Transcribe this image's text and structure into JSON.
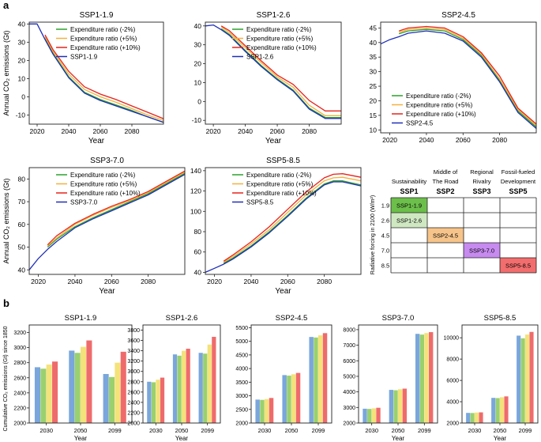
{
  "panels": {
    "a": "a",
    "b": "b"
  },
  "colors": {
    "green": "#2ca02c",
    "orange": "#f5b13d",
    "red": "#e8221b",
    "blue": "#1f2fb8",
    "bar_blue": "#7aa6dc",
    "bar_green": "#9ad06e",
    "bar_yellow": "#f4e27a",
    "bar_red": "#ef6b6b"
  },
  "legend_scenarios": [
    "Expenditure ratio (-2%)",
    "Expenditure ratio (+5%)",
    "Expenditure ratio (+10%)"
  ],
  "xlabel": "Year",
  "ylabel_a": "Annual CO₂ emissions (Gt)",
  "ylabel_b": "Cumulative CO₂ emissions (Gt) since 1850",
  "chart_data": [
    {
      "type": "line",
      "title": "SSP1-1.9",
      "xlabel": "Year",
      "ylabel": "Annual CO₂ emissions (Gt)",
      "xlim": [
        2015,
        2100
      ],
      "ylim": [
        -15,
        41
      ],
      "xticks": [
        2020,
        2040,
        2060,
        2080
      ],
      "yticks": [
        -10,
        0,
        10,
        20,
        30,
        40
      ],
      "series": [
        {
          "name": "Expenditure ratio (-2%)",
          "x": [
            2025,
            2030,
            2040,
            2050,
            2060,
            2070,
            2080,
            2090,
            2100
          ],
          "y": [
            32,
            24,
            11,
            2.5,
            -1.5,
            -4.5,
            -7.5,
            -11,
            -14
          ]
        },
        {
          "name": "Expenditure ratio (+5%)",
          "x": [
            2025,
            2030,
            2040,
            2050,
            2060,
            2070,
            2080,
            2090,
            2100
          ],
          "y": [
            33,
            25,
            12.5,
            4,
            0,
            -3,
            -6.5,
            -10,
            -13
          ]
        },
        {
          "name": "Expenditure ratio (+10%)",
          "x": [
            2025,
            2030,
            2040,
            2050,
            2060,
            2070,
            2080,
            2090,
            2100
          ],
          "y": [
            34,
            26,
            14,
            5.5,
            1.5,
            -1.5,
            -5,
            -8.5,
            -12
          ]
        },
        {
          "name": "SSP1-1.9",
          "x": [
            2015,
            2020,
            2025,
            2030,
            2040,
            2050,
            2060,
            2070,
            2080,
            2090,
            2100
          ],
          "y": [
            40,
            40,
            31.5,
            23.5,
            10.5,
            2,
            -2,
            -5,
            -8,
            -11,
            -14
          ]
        }
      ]
    },
    {
      "type": "line",
      "title": "SSP1-2.6",
      "xlabel": "Year",
      "ylabel": "",
      "xlim": [
        2015,
        2100
      ],
      "ylim": [
        -12,
        42
      ],
      "xticks": [
        2020,
        2040,
        2060,
        2080
      ],
      "yticks": [
        -10,
        0,
        10,
        20,
        30,
        40
      ],
      "series": [
        {
          "name": "Expenditure ratio (-2%)",
          "x": [
            2025,
            2030,
            2040,
            2050,
            2060,
            2070,
            2080,
            2090,
            2100
          ],
          "y": [
            38.5,
            35.5,
            27,
            19,
            12,
            6,
            -3.5,
            -8.5,
            -8.5
          ]
        },
        {
          "name": "Expenditure ratio (+5%)",
          "x": [
            2025,
            2030,
            2040,
            2050,
            2060,
            2070,
            2080,
            2090,
            2100
          ],
          "y": [
            39.5,
            36.5,
            28.5,
            20.5,
            13,
            7.5,
            -2,
            -7.5,
            -7.5
          ]
        },
        {
          "name": "Expenditure ratio (+10%)",
          "x": [
            2025,
            2030,
            2040,
            2050,
            2060,
            2070,
            2080,
            2090,
            2100
          ],
          "y": [
            40,
            37.5,
            29.5,
            21.5,
            14,
            9,
            0.5,
            -5,
            -5
          ]
        },
        {
          "name": "SSP1-2.6",
          "x": [
            2015,
            2020,
            2025,
            2030,
            2040,
            2050,
            2060,
            2070,
            2080,
            2090,
            2100
          ],
          "y": [
            40,
            40.5,
            38,
            35,
            26.5,
            18.5,
            11.5,
            5.5,
            -4,
            -9,
            -9
          ]
        }
      ]
    },
    {
      "type": "line",
      "title": "SSP2-4.5",
      "xlabel": "",
      "ylabel": "",
      "xlim": [
        2015,
        2100
      ],
      "ylim": [
        9,
        47
      ],
      "xticks": [
        2020,
        2040,
        2060,
        2080
      ],
      "yticks": [
        10,
        15,
        20,
        25,
        30,
        35,
        40,
        45
      ],
      "series": [
        {
          "name": "Expenditure ratio (-2%)",
          "x": [
            2025,
            2030,
            2040,
            2050,
            2060,
            2070,
            2080,
            2090,
            2100
          ],
          "y": [
            43,
            44,
            44.5,
            44,
            41,
            35.5,
            27,
            16.5,
            11
          ]
        },
        {
          "name": "Expenditure ratio (+5%)",
          "x": [
            2025,
            2030,
            2040,
            2050,
            2060,
            2070,
            2080,
            2090,
            2100
          ],
          "y": [
            43.5,
            44.5,
            45,
            44.5,
            41.5,
            36,
            27.5,
            17,
            11.5
          ]
        },
        {
          "name": "Expenditure ratio (+10%)",
          "x": [
            2025,
            2030,
            2040,
            2050,
            2060,
            2070,
            2080,
            2090,
            2100
          ],
          "y": [
            44,
            45,
            45.5,
            45,
            42,
            36.5,
            28.5,
            17.5,
            12
          ]
        },
        {
          "name": "SSP2-4.5",
          "x": [
            2015,
            2020,
            2025,
            2030,
            2040,
            2050,
            2060,
            2070,
            2080,
            2090,
            2100
          ],
          "y": [
            39.5,
            41,
            42,
            43.2,
            44,
            43.2,
            40.5,
            35,
            26.5,
            16,
            10.5
          ]
        }
      ]
    },
    {
      "type": "line",
      "title": "SSP3-7.0",
      "xlabel": "Year",
      "ylabel": "Annual CO₂ emissions (Gt)",
      "xlim": [
        2015,
        2100
      ],
      "ylim": [
        38,
        85
      ],
      "xticks": [
        2020,
        2040,
        2060,
        2080
      ],
      "yticks": [
        40,
        50,
        60,
        70,
        80
      ],
      "series": [
        {
          "name": "Expenditure ratio (-2%)",
          "x": [
            2025,
            2030,
            2040,
            2050,
            2060,
            2070,
            2080,
            2090,
            2100
          ],
          "y": [
            50,
            53.5,
            59,
            63,
            66.5,
            70,
            73.5,
            78,
            82.5
          ]
        },
        {
          "name": "Expenditure ratio (+5%)",
          "x": [
            2025,
            2030,
            2040,
            2050,
            2060,
            2070,
            2080,
            2090,
            2100
          ],
          "y": [
            50.5,
            54,
            60,
            64,
            67.5,
            70.5,
            74,
            78.5,
            83
          ]
        },
        {
          "name": "Expenditure ratio (+10%)",
          "x": [
            2025,
            2030,
            2040,
            2050,
            2060,
            2070,
            2080,
            2090,
            2100
          ],
          "y": [
            51,
            55,
            60.5,
            64.5,
            68,
            71,
            74.5,
            79,
            83.5
          ]
        },
        {
          "name": "SSP3-7.0",
          "x": [
            2015,
            2020,
            2025,
            2030,
            2040,
            2050,
            2060,
            2070,
            2080,
            2090,
            2100
          ],
          "y": [
            40,
            45,
            49,
            52.5,
            58.5,
            62.5,
            66,
            69.5,
            73,
            77.5,
            82
          ]
        }
      ]
    },
    {
      "type": "line",
      "title": "SSP5-8.5",
      "xlabel": "Year",
      "ylabel": "",
      "xlim": [
        2015,
        2100
      ],
      "ylim": [
        38,
        143
      ],
      "xticks": [
        2020,
        2040,
        2060,
        2080
      ],
      "yticks": [
        40,
        60,
        80,
        100,
        120,
        140
      ],
      "series": [
        {
          "name": "Expenditure ratio (-2%)",
          "x": [
            2025,
            2030,
            2040,
            2050,
            2060,
            2070,
            2080,
            2085,
            2090,
            2100
          ],
          "y": [
            49,
            54,
            66,
            80,
            96,
            113,
            127,
            130,
            130,
            126
          ]
        },
        {
          "name": "Expenditure ratio (+5%)",
          "x": [
            2025,
            2030,
            2040,
            2050,
            2060,
            2070,
            2080,
            2085,
            2090,
            2100
          ],
          "y": [
            50,
            55.5,
            68,
            82,
            99,
            116,
            130,
            133,
            133.5,
            130
          ]
        },
        {
          "name": "Expenditure ratio (+10%)",
          "x": [
            2025,
            2030,
            2040,
            2050,
            2060,
            2070,
            2080,
            2085,
            2090,
            2100
          ],
          "y": [
            51,
            57,
            70,
            85,
            102,
            119,
            133,
            136.5,
            137,
            133.5
          ]
        },
        {
          "name": "SSP5-8.5",
          "x": [
            2015,
            2020,
            2025,
            2030,
            2040,
            2050,
            2060,
            2070,
            2080,
            2085,
            2090,
            2100
          ],
          "y": [
            40,
            44,
            48,
            53,
            65,
            79,
            95,
            112,
            126,
            129,
            129,
            125
          ]
        }
      ]
    },
    {
      "type": "table",
      "title": "SSP framework",
      "columns": [
        {
          "desc1": "",
          "desc2": "Sustainability",
          "code": "SSP1"
        },
        {
          "desc1": "Middle of",
          "desc2": "The Road",
          "code": "SSP2"
        },
        {
          "desc1": "Regional",
          "desc2": "Rivalry",
          "code": "SSP3"
        },
        {
          "desc1": "Fossil-fueled",
          "desc2": "Development",
          "code": "SSP5"
        }
      ],
      "rows": [
        "1.9",
        "2.6",
        "4.5",
        "7.0",
        "8.5"
      ],
      "ylabel": "Radiative forcing in 2100 (W/m²)",
      "cells": [
        {
          "row": 0,
          "col": 0,
          "label": "SSP1-1.9",
          "color": "#6cbf4a"
        },
        {
          "row": 1,
          "col": 0,
          "label": "SSP1-2.6",
          "color": "#cfe8c2"
        },
        {
          "row": 2,
          "col": 1,
          "label": "SSP2-4.5",
          "color": "#f6c48a"
        },
        {
          "row": 3,
          "col": 2,
          "label": "SSP3-7.0",
          "color": "#c78bf0"
        },
        {
          "row": 4,
          "col": 3,
          "label": "SSP5-8.5",
          "color": "#f26d6d"
        }
      ]
    },
    {
      "type": "bar",
      "title": "SSP1-1.9",
      "categories": [
        "2030",
        "2050",
        "2099"
      ],
      "xlabel": "Year",
      "ylabel": "Cumulative CO₂ emissions (Gt) since 1850",
      "ylim": [
        2000,
        3300
      ],
      "yticks": [
        2000,
        2200,
        2400,
        2600,
        2800,
        3000,
        3200
      ],
      "series": [
        {
          "name": "SSP",
          "values": [
            2740,
            2960,
            2650
          ]
        },
        {
          "name": "Expenditure ratio (-2%)",
          "values": [
            2720,
            2930,
            2610
          ]
        },
        {
          "name": "Expenditure ratio (+5%)",
          "values": [
            2775,
            3010,
            2800
          ]
        },
        {
          "name": "Expenditure ratio (+10%)",
          "values": [
            2815,
            3095,
            2945
          ]
        }
      ]
    },
    {
      "type": "bar",
      "title": "SSP1-2.6",
      "categories": [
        "2030",
        "2050",
        "2099"
      ],
      "xlabel": "Year",
      "ylabel": "",
      "ylim": [
        2000,
        3900
      ],
      "yticks": [
        2000,
        2200,
        2400,
        2600,
        2800,
        3000,
        3200,
        3400,
        3600,
        3800
      ],
      "series": [
        {
          "name": "SSP",
          "values": [
            2800,
            3330,
            3360
          ]
        },
        {
          "name": "Expenditure ratio (-2%)",
          "values": [
            2790,
            3305,
            3345
          ]
        },
        {
          "name": "Expenditure ratio (+5%)",
          "values": [
            2840,
            3400,
            3520
          ]
        },
        {
          "name": "Expenditure ratio (+10%)",
          "values": [
            2880,
            3440,
            3670
          ]
        }
      ]
    },
    {
      "type": "bar",
      "title": "SSP2-4.5",
      "categories": [
        "2030",
        "2050",
        "2099"
      ],
      "xlabel": "",
      "ylabel": "",
      "ylim": [
        2000,
        5600
      ],
      "yticks": [
        2000,
        2500,
        3000,
        3500,
        4000,
        4500,
        5000,
        5500
      ],
      "series": [
        {
          "name": "SSP",
          "values": [
            2860,
            3760,
            5160
          ]
        },
        {
          "name": "Expenditure ratio (-2%)",
          "values": [
            2850,
            3740,
            5140
          ]
        },
        {
          "name": "Expenditure ratio (+5%)",
          "values": [
            2880,
            3790,
            5220
          ]
        },
        {
          "name": "Expenditure ratio (+10%)",
          "values": [
            2920,
            3840,
            5300
          ]
        }
      ]
    },
    {
      "type": "bar",
      "title": "SSP3-7.0",
      "categories": [
        "2030",
        "2050",
        "2099"
      ],
      "xlabel": "Year",
      "ylabel": "",
      "ylim": [
        2000,
        8300
      ],
      "yticks": [
        2000,
        3000,
        4000,
        5000,
        6000,
        7000,
        8000
      ],
      "series": [
        {
          "name": "SSP",
          "values": [
            2920,
            4130,
            7730
          ]
        },
        {
          "name": "Expenditure ratio (-2%)",
          "values": [
            2905,
            4105,
            7680
          ]
        },
        {
          "name": "Expenditure ratio (+5%)",
          "values": [
            2940,
            4170,
            7780
          ]
        },
        {
          "name": "Expenditure ratio (+10%)",
          "values": [
            2980,
            4210,
            7840
          ]
        }
      ]
    },
    {
      "type": "bar",
      "title": "SSP5-8.5",
      "categories": [
        "2030",
        "2050",
        "2099"
      ],
      "xlabel": "Year",
      "ylabel": "",
      "ylim": [
        2000,
        11200
      ],
      "yticks": [
        2000,
        4000,
        6000,
        8000,
        10000
      ],
      "series": [
        {
          "name": "SSP",
          "values": [
            2950,
            4360,
            10200
          ]
        },
        {
          "name": "Expenditure ratio (-2%)",
          "values": [
            2940,
            4340,
            9950
          ]
        },
        {
          "name": "Expenditure ratio (+5%)",
          "values": [
            2980,
            4420,
            10300
          ]
        },
        {
          "name": "Expenditure ratio (+10%)",
          "values": [
            3000,
            4500,
            10550
          ]
        }
      ]
    }
  ]
}
